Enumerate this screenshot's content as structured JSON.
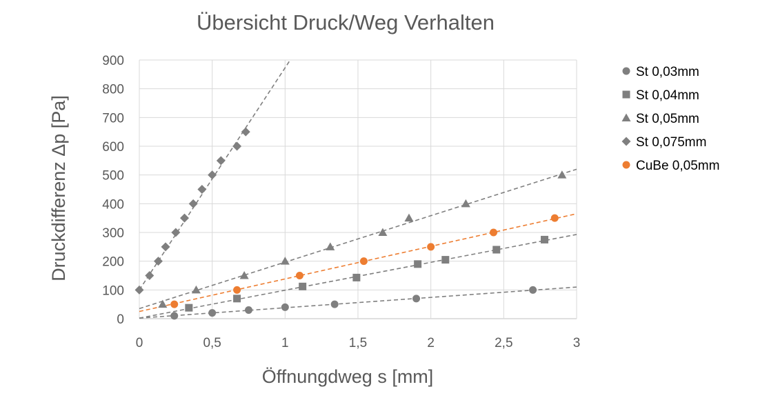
{
  "chart_data": {
    "type": "scatter",
    "title": "Übersicht Druck/Weg Verhalten",
    "xlabel": "Öffnungdweg s [mm]",
    "ylabel": "Druckdifferenz Δp [Pa]",
    "xlim": [
      0,
      3
    ],
    "ylim": [
      0,
      900
    ],
    "x_ticks": [
      "0",
      "0,5",
      "1",
      "1,5",
      "2",
      "2,5",
      "3"
    ],
    "y_ticks": [
      "0",
      "100",
      "200",
      "300",
      "400",
      "500",
      "600",
      "700",
      "800",
      "900"
    ],
    "grid": "vertical and horizontal",
    "legend_position": "right",
    "colors": {
      "grey": "#7f7f7f",
      "orange": "#ed7d31"
    },
    "series": [
      {
        "name": "St 0,03mm",
        "marker": "circle",
        "color": "#7f7f7f",
        "points": [
          [
            0.24,
            10
          ],
          [
            0.5,
            20
          ],
          [
            0.75,
            30
          ],
          [
            1.0,
            40
          ],
          [
            1.34,
            50
          ],
          [
            1.9,
            70
          ],
          [
            2.7,
            100
          ]
        ],
        "trendline": [
          [
            0,
            2
          ],
          [
            3,
            110
          ]
        ]
      },
      {
        "name": "St 0,04mm",
        "marker": "square",
        "color": "#7f7f7f",
        "points": [
          [
            0.34,
            38
          ],
          [
            0.67,
            70
          ],
          [
            1.12,
            112
          ],
          [
            1.49,
            143
          ],
          [
            1.91,
            190
          ],
          [
            2.1,
            205
          ],
          [
            2.45,
            240
          ],
          [
            2.78,
            275
          ]
        ],
        "trendline": [
          [
            0,
            2
          ],
          [
            3,
            293
          ]
        ]
      },
      {
        "name": "St 0,05mm",
        "marker": "triangle",
        "color": "#7f7f7f",
        "points": [
          [
            0.16,
            50
          ],
          [
            0.39,
            100
          ],
          [
            0.72,
            150
          ],
          [
            1.0,
            200
          ],
          [
            1.31,
            250
          ],
          [
            1.67,
            300
          ],
          [
            1.85,
            350
          ],
          [
            2.24,
            400
          ],
          [
            2.9,
            500
          ]
        ],
        "trendline": [
          [
            0,
            35
          ],
          [
            3,
            520
          ]
        ]
      },
      {
        "name": "St 0,075mm",
        "marker": "diamond",
        "color": "#7f7f7f",
        "points": [
          [
            0.0,
            100
          ],
          [
            0.07,
            150
          ],
          [
            0.13,
            200
          ],
          [
            0.18,
            250
          ],
          [
            0.25,
            300
          ],
          [
            0.31,
            350
          ],
          [
            0.37,
            400
          ],
          [
            0.43,
            450
          ],
          [
            0.5,
            500
          ],
          [
            0.56,
            550
          ],
          [
            0.67,
            600
          ],
          [
            0.73,
            650
          ]
        ],
        "trendline": [
          [
            0,
            100
          ],
          [
            1.035,
            900
          ]
        ]
      },
      {
        "name": "CuBe 0,05mm",
        "marker": "circle",
        "color": "#ed7d31",
        "points": [
          [
            0.24,
            50
          ],
          [
            0.67,
            100
          ],
          [
            1.1,
            150
          ],
          [
            1.54,
            200
          ],
          [
            2.0,
            250
          ],
          [
            2.43,
            300
          ],
          [
            2.85,
            350
          ]
        ],
        "trendline": [
          [
            0,
            25
          ],
          [
            3,
            365
          ]
        ]
      }
    ]
  }
}
